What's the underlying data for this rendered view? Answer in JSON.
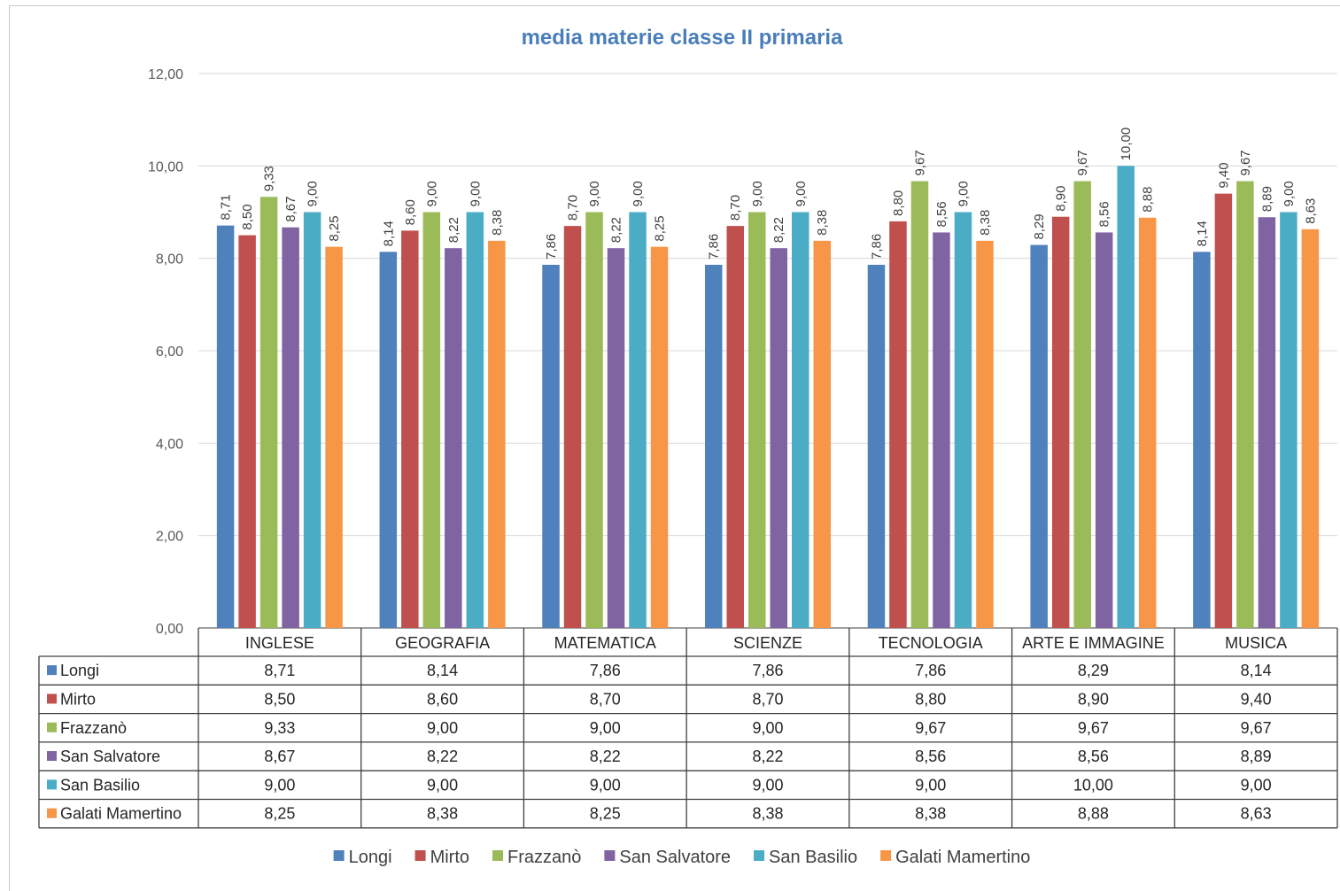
{
  "chart_data": {
    "type": "bar",
    "title": "media materie classe II primaria",
    "ylim": [
      0,
      12
    ],
    "yticks": [
      "0,00",
      "2,00",
      "4,00",
      "6,00",
      "8,00",
      "10,00",
      "12,00"
    ],
    "yticks_values": [
      0,
      2,
      4,
      6,
      8,
      10,
      12
    ],
    "grid": true,
    "legend_position": "bottom",
    "data_table": true,
    "categories": [
      "INGLESE",
      "GEOGRAFIA",
      "MATEMATICA",
      "SCIENZE",
      "TECNOLOGIA",
      "ARTE E IMMAGINE",
      "MUSICA"
    ],
    "series": [
      {
        "name": "Longi",
        "color": "#4f81bd",
        "values": [
          8.71,
          8.14,
          7.86,
          7.86,
          7.86,
          8.29,
          8.14
        ],
        "labels": [
          "8,71",
          "8,14",
          "7,86",
          "7,86",
          "7,86",
          "8,29",
          "8,14"
        ]
      },
      {
        "name": "Mirto",
        "color": "#c0504d",
        "values": [
          8.5,
          8.6,
          8.7,
          8.7,
          8.8,
          8.9,
          9.4
        ],
        "labels": [
          "8,50",
          "8,60",
          "8,70",
          "8,70",
          "8,80",
          "8,90",
          "9,40"
        ]
      },
      {
        "name": "Frazzanò",
        "color": "#9bbb59",
        "values": [
          9.33,
          9.0,
          9.0,
          9.0,
          9.67,
          9.67,
          9.67
        ],
        "labels": [
          "9,33",
          "9,00",
          "9,00",
          "9,00",
          "9,67",
          "9,67",
          "9,67"
        ]
      },
      {
        "name": "San Salvatore",
        "color": "#8064a2",
        "values": [
          8.67,
          8.22,
          8.22,
          8.22,
          8.56,
          8.56,
          8.89
        ],
        "labels": [
          "8,67",
          "8,22",
          "8,22",
          "8,22",
          "8,56",
          "8,56",
          "8,89"
        ]
      },
      {
        "name": "San Basilio",
        "color": "#4bacc6",
        "values": [
          9.0,
          9.0,
          9.0,
          9.0,
          9.0,
          10.0,
          9.0
        ],
        "labels": [
          "9,00",
          "9,00",
          "9,00",
          "9,00",
          "9,00",
          "10,00",
          "9,00"
        ]
      },
      {
        "name": "Galati Mamertino",
        "color": "#f79646",
        "values": [
          8.25,
          8.38,
          8.25,
          8.38,
          8.38,
          8.88,
          8.63
        ],
        "labels": [
          "8,25",
          "8,38",
          "8,25",
          "8,38",
          "8,38",
          "8,88",
          "8,63"
        ]
      }
    ]
  }
}
